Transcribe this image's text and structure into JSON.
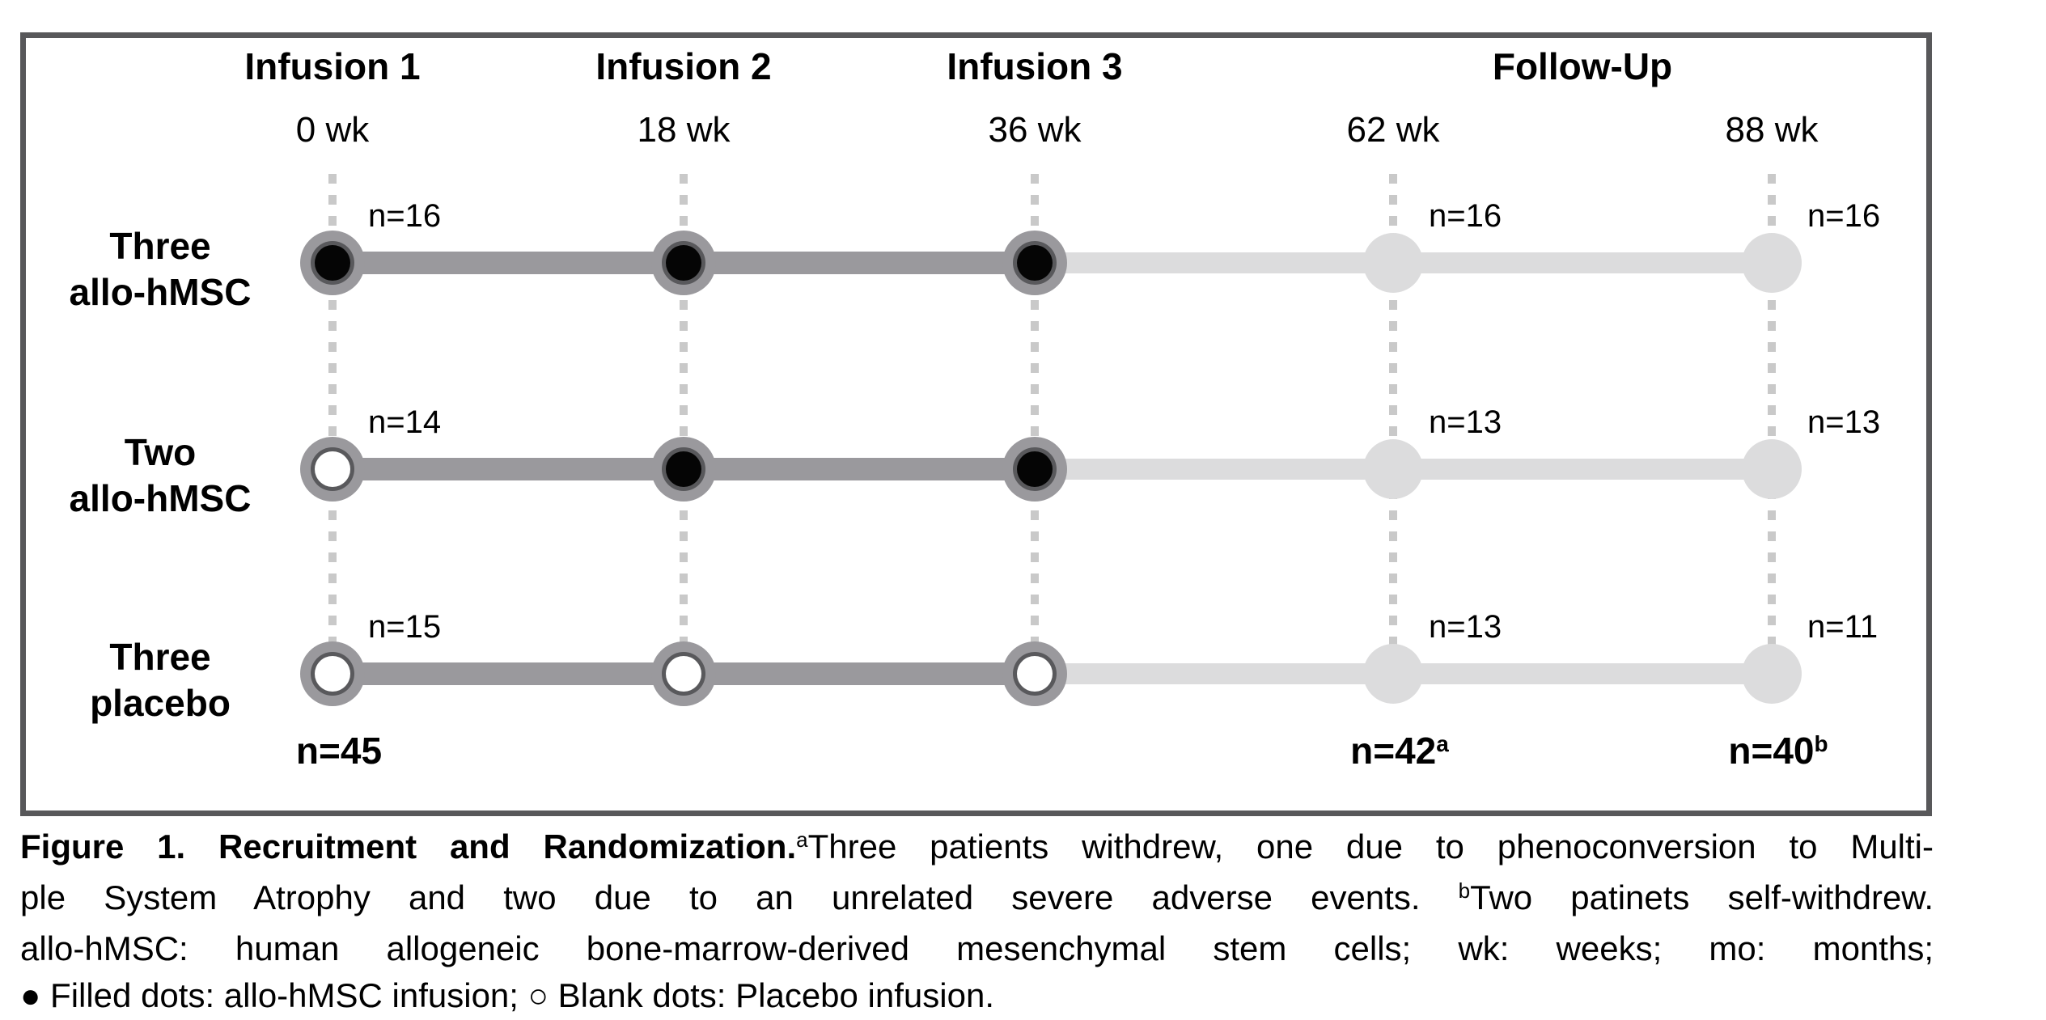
{
  "figure": {
    "phase_headers": [
      {
        "label": "Infusion 1"
      },
      {
        "label": "Infusion 2"
      },
      {
        "label": "Infusion 3"
      },
      {
        "label": "Follow-Up"
      }
    ],
    "timepoints": [
      "0 wk",
      "18 wk",
      "36 wk",
      "62 wk",
      "88 wk"
    ],
    "arms": [
      {
        "label_lines": [
          "Three",
          "allo-hMSC"
        ],
        "dots": [
          "filled",
          "filled",
          "filled",
          "followup",
          "followup"
        ],
        "counts": [
          {
            "col": 0,
            "text": "n=16"
          },
          {
            "col": 3,
            "text": "n=16"
          },
          {
            "col": 4,
            "text": "n=16"
          }
        ]
      },
      {
        "label_lines": [
          "Two",
          "allo-hMSC"
        ],
        "dots": [
          "open",
          "filled",
          "filled",
          "followup",
          "followup"
        ],
        "counts": [
          {
            "col": 0,
            "text": "n=14"
          },
          {
            "col": 3,
            "text": "n=13"
          },
          {
            "col": 4,
            "text": "n=13"
          }
        ]
      },
      {
        "label_lines": [
          "Three",
          "placebo"
        ],
        "dots": [
          "open",
          "open",
          "open",
          "followup",
          "followup"
        ],
        "counts": [
          {
            "col": 0,
            "text": "n=15"
          },
          {
            "col": 3,
            "text": "n=13"
          },
          {
            "col": 4,
            "text": "n=11"
          }
        ]
      }
    ],
    "totals": [
      {
        "col": 0,
        "text": "n=45",
        "sup": ""
      },
      {
        "col": 3,
        "text": "n=42",
        "sup": "a"
      },
      {
        "col": 4,
        "text": "n=40",
        "sup": "b"
      }
    ],
    "colors": {
      "treatment_line": "#9a999d",
      "followup_line": "#dcdcdd",
      "dash_line": "#c9c9c9",
      "dot_outer": "#9a999d",
      "dot_ring": "#59595c",
      "dot_core_filled": "#050505",
      "dot_core_open": "#ffffff",
      "followup_dot": "#dcdcdd",
      "box_border": "#58585a",
      "text": "#000000"
    }
  },
  "caption": {
    "lines": [
      {
        "justify": true,
        "segments": [
          {
            "text": "Figure 1. Recruitment and Randomization.",
            "bold": true
          },
          {
            "text": "a",
            "sup": true
          },
          {
            "text": "Three patients withdrew, one due to phenoconversion to Multi-"
          }
        ]
      },
      {
        "justify": true,
        "segments": [
          {
            "text": "ple System Atrophy and two due to an unrelated severe adverse events. "
          },
          {
            "text": "b",
            "sup": true
          },
          {
            "text": "Two patinets self-withdrew."
          }
        ]
      },
      {
        "justify": true,
        "segments": [
          {
            "text": "allo-hMSC: human allogeneic bone-marrow-derived mesenchymal stem cells; wk: weeks; mo: months;"
          }
        ]
      },
      {
        "justify": false,
        "segments": [
          {
            "text": "● Filled dots: allo-hMSC infusion; ○ Blank dots: Placebo infusion."
          }
        ]
      }
    ]
  },
  "chart_data": {
    "type": "table",
    "title": "Figure 1. Recruitment and Randomization",
    "columns": [
      "0 wk",
      "18 wk",
      "36 wk",
      "62 wk",
      "88 wk"
    ],
    "phases": [
      "Infusion 1",
      "Infusion 2",
      "Infusion 3",
      "Follow-Up",
      "Follow-Up"
    ],
    "rows": [
      {
        "arm": "Three allo-hMSC",
        "infusion_type": [
          "allo-hMSC",
          "allo-hMSC",
          "allo-hMSC"
        ],
        "n_by_timepoint": [
          16,
          null,
          null,
          16,
          16
        ]
      },
      {
        "arm": "Two allo-hMSC",
        "infusion_type": [
          "Placebo",
          "allo-hMSC",
          "allo-hMSC"
        ],
        "n_by_timepoint": [
          14,
          null,
          null,
          13,
          13
        ]
      },
      {
        "arm": "Three placebo",
        "infusion_type": [
          "Placebo",
          "Placebo",
          "Placebo"
        ],
        "n_by_timepoint": [
          15,
          null,
          null,
          13,
          11
        ]
      }
    ],
    "totals": [
      {
        "timepoint": "0 wk",
        "n": 45,
        "note": ""
      },
      {
        "timepoint": "62 wk",
        "n": 42,
        "note": "a"
      },
      {
        "timepoint": "88 wk",
        "n": 40,
        "note": "b"
      }
    ],
    "legend": {
      "filled_dot": "allo-hMSC infusion",
      "blank_dot": "Placebo infusion"
    }
  }
}
